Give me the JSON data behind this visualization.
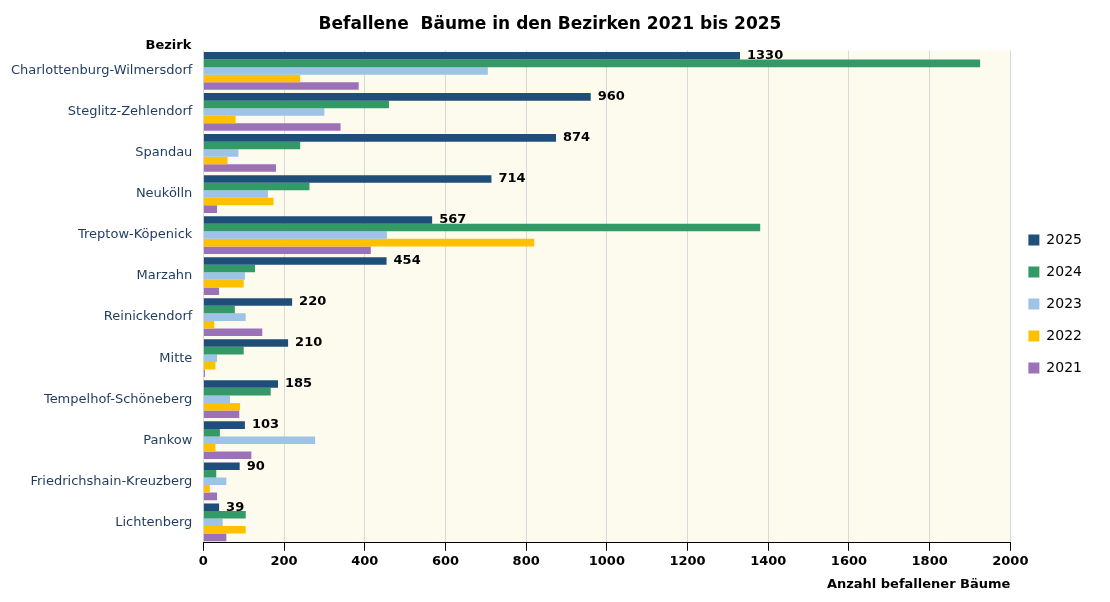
{
  "chart_data": {
    "type": "bar",
    "orientation": "horizontal",
    "title": "Befallene  Bäume in den Bezirken 2021 bis 2025",
    "xlabel": "Anzahl befallener Bäume",
    "ylabel": "Bezirk",
    "categories": [
      "Charlottenburg-Wilmersdorf",
      "Steglitz-Zehlendorf",
      "Spandau",
      "Neukölln",
      "Treptow-Köpenick",
      "Marzahn",
      "Reinickendorf",
      "Mitte",
      "Tempelhof-Schöneberg",
      "Pankow",
      "Friedrichshain-Kreuzberg",
      "Lichtenberg"
    ],
    "series": [
      {
        "name": "2025",
        "color": "#1f4e79",
        "values": [
          1330,
          960,
          874,
          714,
          567,
          454,
          220,
          210,
          185,
          103,
          90,
          39
        ],
        "value_labels": [
          "1330",
          "960",
          "874",
          "714",
          "567",
          "454",
          "220",
          "210",
          "185",
          "103",
          "90",
          "39"
        ]
      },
      {
        "name": "2024",
        "color": "#339966",
        "values": [
          1925,
          460,
          240,
          263,
          1380,
          128,
          78,
          100,
          167,
          41,
          32,
          105
        ]
      },
      {
        "name": "2023",
        "color": "#9dc3e6",
        "values": [
          705,
          300,
          87,
          160,
          455,
          103,
          105,
          34,
          66,
          277,
          57,
          48
        ]
      },
      {
        "name": "2022",
        "color": "#ffc000",
        "values": [
          240,
          80,
          60,
          174,
          820,
          100,
          27,
          30,
          91,
          30,
          16,
          105
        ]
      },
      {
        "name": "2021",
        "color": "#9b72b8",
        "values": [
          385,
          340,
          180,
          34,
          415,
          39,
          146,
          4,
          89,
          119,
          34,
          57
        ]
      }
    ],
    "xlim": [
      0,
      2000
    ],
    "xticks": [
      0,
      200,
      400,
      600,
      800,
      1000,
      1200,
      1400,
      1600,
      1800,
      2000
    ],
    "grid": "x",
    "legend": "right"
  }
}
